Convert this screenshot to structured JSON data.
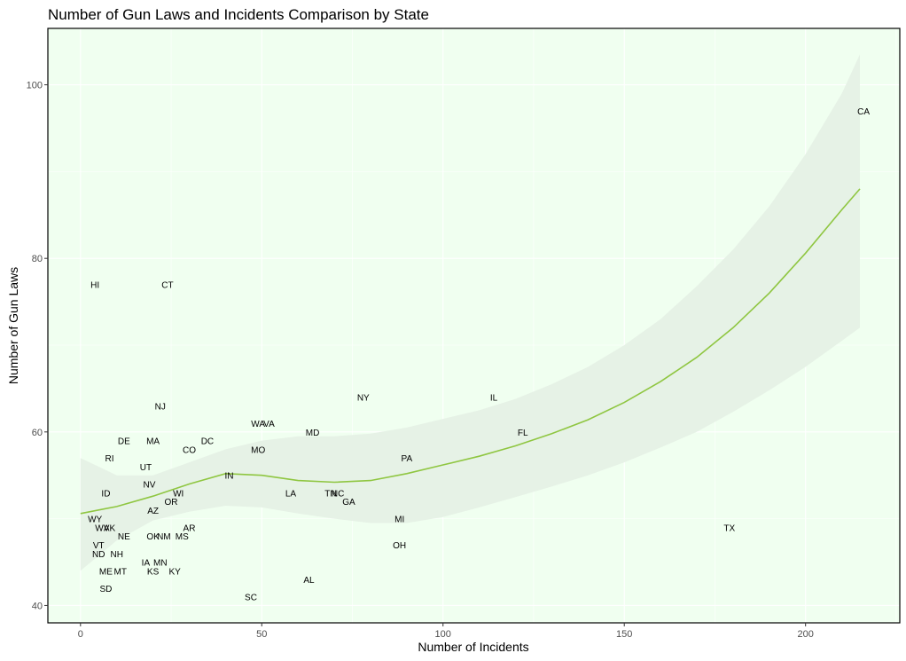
{
  "chart_data": {
    "type": "scatter",
    "title": "Number of Gun Laws and Incidents Comparison by State",
    "xlabel": "Number of Incidents",
    "ylabel": "Number of Gun Laws",
    "xlim": [
      -9,
      226
    ],
    "ylim": [
      38,
      106.5
    ],
    "x_ticks": [
      0,
      50,
      100,
      150,
      200
    ],
    "y_ticks": [
      40,
      60,
      80,
      100
    ],
    "grid": true,
    "panel_background": "#f0fff0",
    "smooth_color": "#8fc641",
    "band_color": "#e6f2e6",
    "points": [
      {
        "label": "CA",
        "x": 216,
        "y": 97
      },
      {
        "label": "HI",
        "x": 4,
        "y": 77
      },
      {
        "label": "CT",
        "x": 24,
        "y": 77
      },
      {
        "label": "NJ",
        "x": 22,
        "y": 63
      },
      {
        "label": "NY",
        "x": 78,
        "y": 64
      },
      {
        "label": "IL",
        "x": 114,
        "y": 64
      },
      {
        "label": "WA",
        "x": 49,
        "y": 61
      },
      {
        "label": "VA",
        "x": 52,
        "y": 61
      },
      {
        "label": "MD",
        "x": 64,
        "y": 60
      },
      {
        "label": "FL",
        "x": 122,
        "y": 60
      },
      {
        "label": "DE",
        "x": 12,
        "y": 59
      },
      {
        "label": "MA",
        "x": 20,
        "y": 59
      },
      {
        "label": "DC",
        "x": 35,
        "y": 59
      },
      {
        "label": "CO",
        "x": 30,
        "y": 58
      },
      {
        "label": "MO",
        "x": 49,
        "y": 58
      },
      {
        "label": "RI",
        "x": 8,
        "y": 57
      },
      {
        "label": "PA",
        "x": 90,
        "y": 57
      },
      {
        "label": "UT",
        "x": 18,
        "y": 56
      },
      {
        "label": "IN",
        "x": 41,
        "y": 55
      },
      {
        "label": "NV",
        "x": 19,
        "y": 54
      },
      {
        "label": "ID",
        "x": 7,
        "y": 53
      },
      {
        "label": "WI",
        "x": 27,
        "y": 53
      },
      {
        "label": "LA",
        "x": 58,
        "y": 53
      },
      {
        "label": "TN",
        "x": 69,
        "y": 53
      },
      {
        "label": "NC",
        "x": 71,
        "y": 53
      },
      {
        "label": "OR",
        "x": 25,
        "y": 52
      },
      {
        "label": "GA",
        "x": 74,
        "y": 52
      },
      {
        "label": "AZ",
        "x": 20,
        "y": 51
      },
      {
        "label": "WY",
        "x": 4,
        "y": 50
      },
      {
        "label": "MI",
        "x": 88,
        "y": 50
      },
      {
        "label": "WV",
        "x": 6,
        "y": 49
      },
      {
        "label": "AK",
        "x": 8,
        "y": 49
      },
      {
        "label": "AR",
        "x": 30,
        "y": 49
      },
      {
        "label": "TX",
        "x": 179,
        "y": 49
      },
      {
        "label": "NE",
        "x": 12,
        "y": 48
      },
      {
        "label": "OK",
        "x": 20,
        "y": 48
      },
      {
        "label": "NM",
        "x": 23,
        "y": 48
      },
      {
        "label": "MS",
        "x": 28,
        "y": 48
      },
      {
        "label": "VT",
        "x": 5,
        "y": 47
      },
      {
        "label": "OH",
        "x": 88,
        "y": 47
      },
      {
        "label": "ND",
        "x": 5,
        "y": 46
      },
      {
        "label": "NH",
        "x": 10,
        "y": 46
      },
      {
        "label": "IA",
        "x": 18,
        "y": 45
      },
      {
        "label": "MN",
        "x": 22,
        "y": 45
      },
      {
        "label": "ME",
        "x": 7,
        "y": 44
      },
      {
        "label": "MT",
        "x": 11,
        "y": 44
      },
      {
        "label": "KS",
        "x": 20,
        "y": 44
      },
      {
        "label": "KY",
        "x": 26,
        "y": 44
      },
      {
        "label": "AL",
        "x": 63,
        "y": 43
      },
      {
        "label": "SD",
        "x": 7,
        "y": 42
      },
      {
        "label": "SC",
        "x": 47,
        "y": 41
      }
    ],
    "smooth_line": [
      {
        "x": 0,
        "y": 50.6
      },
      {
        "x": 10,
        "y": 51.4
      },
      {
        "x": 20,
        "y": 52.6
      },
      {
        "x": 30,
        "y": 54.0
      },
      {
        "x": 40,
        "y": 55.2
      },
      {
        "x": 50,
        "y": 55.0
      },
      {
        "x": 60,
        "y": 54.4
      },
      {
        "x": 70,
        "y": 54.2
      },
      {
        "x": 80,
        "y": 54.4
      },
      {
        "x": 90,
        "y": 55.2
      },
      {
        "x": 100,
        "y": 56.2
      },
      {
        "x": 110,
        "y": 57.2
      },
      {
        "x": 120,
        "y": 58.4
      },
      {
        "x": 130,
        "y": 59.8
      },
      {
        "x": 140,
        "y": 61.4
      },
      {
        "x": 150,
        "y": 63.4
      },
      {
        "x": 160,
        "y": 65.8
      },
      {
        "x": 170,
        "y": 68.6
      },
      {
        "x": 180,
        "y": 72.0
      },
      {
        "x": 190,
        "y": 76.0
      },
      {
        "x": 200,
        "y": 80.6
      },
      {
        "x": 210,
        "y": 85.6
      },
      {
        "x": 215,
        "y": 88.0
      }
    ],
    "confidence_band": {
      "x": [
        0,
        10,
        20,
        30,
        40,
        50,
        60,
        70,
        80,
        90,
        100,
        110,
        120,
        130,
        140,
        150,
        160,
        170,
        180,
        190,
        200,
        210,
        215
      ],
      "upper": [
        57.0,
        55.0,
        55.0,
        56.5,
        58.0,
        59.0,
        59.5,
        59.5,
        59.8,
        60.5,
        61.5,
        62.5,
        63.8,
        65.5,
        67.5,
        70.0,
        73.0,
        76.8,
        81.0,
        86.0,
        92.0,
        99.0,
        103.5
      ],
      "lower": [
        44.0,
        47.5,
        49.8,
        50.8,
        51.5,
        51.3,
        50.6,
        50.0,
        49.5,
        49.5,
        50.2,
        51.3,
        52.5,
        53.7,
        55.0,
        56.5,
        58.2,
        60.0,
        62.3,
        64.8,
        67.5,
        70.5,
        72.0
      ]
    }
  }
}
